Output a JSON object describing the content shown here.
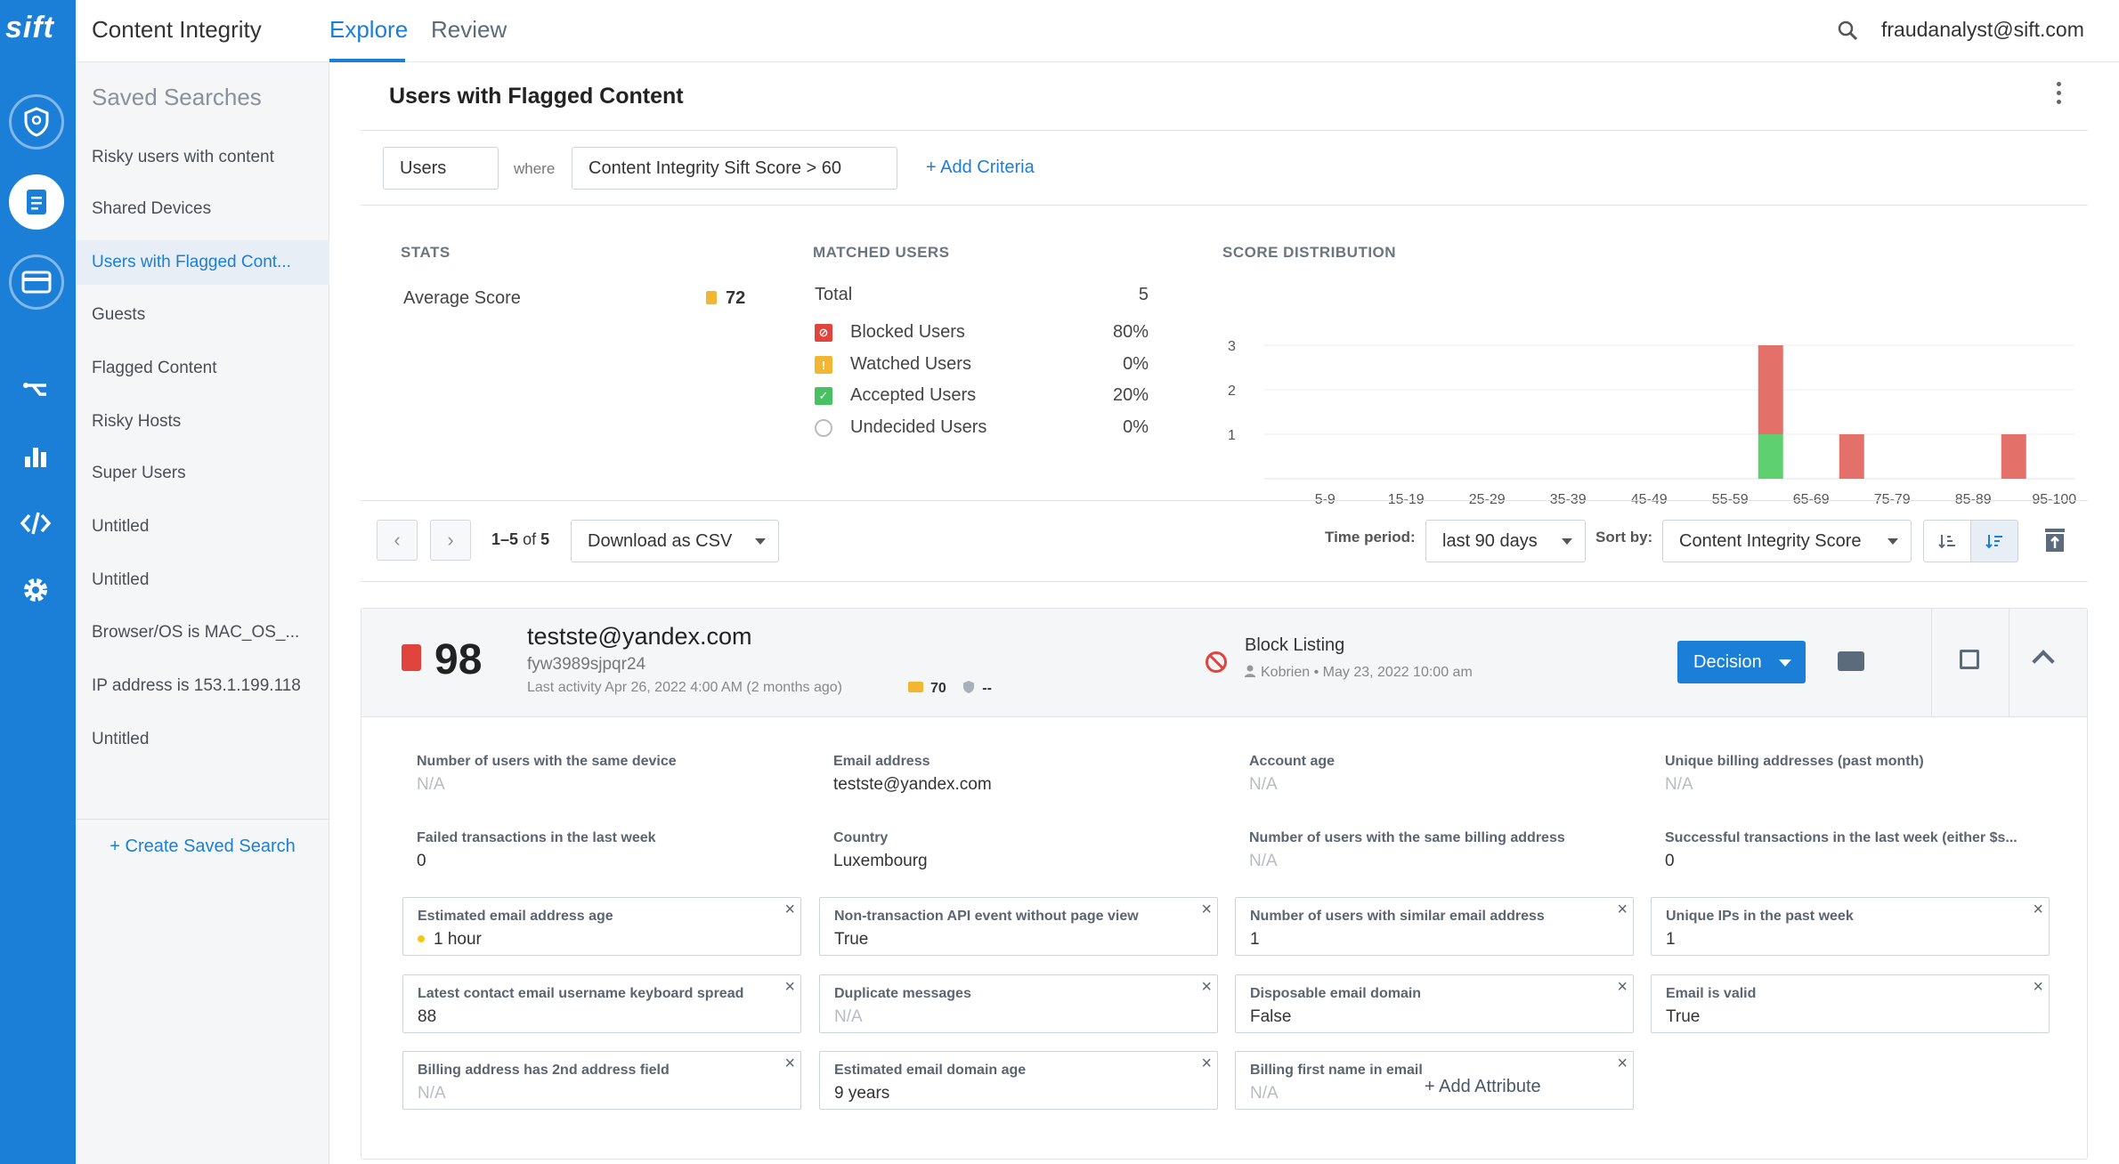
{
  "app": {
    "logo": "sift",
    "title": "Content Integrity"
  },
  "nav": {
    "tabs": [
      "Explore",
      "Review"
    ],
    "active": "Explore"
  },
  "user": {
    "email": "fraudanalyst@sift.com"
  },
  "sidebar": {
    "title": "Saved Searches",
    "items": [
      {
        "label": "Risky users with content"
      },
      {
        "label": "Shared Devices"
      },
      {
        "label": "Users with Flagged Cont..."
      },
      {
        "label": "Guests"
      },
      {
        "label": "Flagged Content"
      },
      {
        "label": "Risky Hosts"
      },
      {
        "label": "Super Users"
      },
      {
        "label": "Untitled"
      },
      {
        "label": "Untitled"
      },
      {
        "label": "Browser/OS is MAC_OS_..."
      },
      {
        "label": "IP address is 153.1.199.118"
      },
      {
        "label": "Untitled"
      }
    ],
    "active_index": 2,
    "create_label": "+ Create Saved Search"
  },
  "page": {
    "title": "Users with Flagged Content"
  },
  "criteria": {
    "entity": "Users",
    "where": "where",
    "condition": "Content Integrity Sift Score > 60",
    "add_label": "+ Add Criteria"
  },
  "stats": {
    "label": "STATS",
    "avg_name": "Average Score",
    "avg_value": "72"
  },
  "matched": {
    "label": "MATCHED USERS",
    "total_label": "Total",
    "total_value": "5",
    "rows": [
      {
        "label": "Blocked Users",
        "value": "80%",
        "color": "#e0443c",
        "icon": "blocked-icon"
      },
      {
        "label": "Watched Users",
        "value": "0%",
        "color": "#f2b632",
        "icon": "warning-icon"
      },
      {
        "label": "Accepted Users",
        "value": "20%",
        "color": "#49c163",
        "icon": "check-icon"
      },
      {
        "label": "Undecided Users",
        "value": "0%",
        "color": "#ffffff",
        "icon": "circle-icon"
      }
    ]
  },
  "chart_data": {
    "type": "bar",
    "title": "SCORE DISTRIBUTION",
    "categories": [
      "5-9",
      "15-19",
      "25-29",
      "35-39",
      "45-49",
      "55-59",
      "65-69",
      "75-79",
      "85-89",
      "95-100"
    ],
    "series": [
      {
        "name": "Accepted",
        "color": "#5fd06f",
        "values": [
          0,
          0,
          0,
          0,
          0,
          0,
          1,
          0,
          0,
          0
        ]
      },
      {
        "name": "Blocked",
        "color": "#e3716a",
        "values": [
          0,
          0,
          0,
          0,
          0,
          0,
          2,
          1,
          0,
          1
        ]
      }
    ],
    "yticks": [
      1,
      2,
      3
    ],
    "ylim": [
      0,
      3
    ],
    "stacked": true
  },
  "toolbar": {
    "pager_text": "1–5",
    "pager_of": "of",
    "pager_total": "5",
    "download_label": "Download as CSV",
    "time_label": "Time period:",
    "time_value": "last 90 days",
    "sort_label": "Sort by:",
    "sort_value": "Content Integrity Score"
  },
  "result": {
    "score": "98",
    "email": "testste@yandex.com",
    "user_id": "fyw3989sjpqr24",
    "activity": "Last activity Apr 26, 2022 4:00 AM (2 months ago)",
    "card_score": "70",
    "device_score": "--",
    "decision_title": "Block Listing",
    "decision_author": "Kobrien",
    "decision_date": "May 23, 2022 10:00 am",
    "decision_button": "Decision"
  },
  "attributes": [
    {
      "label": "Number of users with the same device",
      "value": "N/A",
      "na": true,
      "boxed": false
    },
    {
      "label": "Email address",
      "value": "testste@yandex.com",
      "na": false,
      "boxed": false
    },
    {
      "label": "Account age",
      "value": "N/A",
      "na": true,
      "boxed": false
    },
    {
      "label": "Unique billing addresses (past month)",
      "value": "N/A",
      "na": true,
      "boxed": false
    },
    {
      "label": "Failed transactions in the last week",
      "value": "0",
      "na": false,
      "boxed": false
    },
    {
      "label": "Country",
      "value": "Luxembourg",
      "na": false,
      "boxed": false
    },
    {
      "label": "Number of users with the same billing address",
      "value": "N/A",
      "na": true,
      "boxed": false
    },
    {
      "label": "Successful transactions in the last week (either $s...",
      "value": "0",
      "na": false,
      "boxed": false
    },
    {
      "label": "Estimated email address age",
      "value": "1 hour",
      "na": false,
      "boxed": true,
      "dot": true
    },
    {
      "label": "Non-transaction API event without page view",
      "value": "True",
      "na": false,
      "boxed": true
    },
    {
      "label": "Number of users with similar email address",
      "value": "1",
      "na": false,
      "boxed": true
    },
    {
      "label": "Unique IPs in the past week",
      "value": "1",
      "na": false,
      "boxed": true
    },
    {
      "label": "Latest contact email username keyboard spread",
      "value": "88",
      "na": false,
      "boxed": true
    },
    {
      "label": "Duplicate messages",
      "value": "N/A",
      "na": true,
      "boxed": true
    },
    {
      "label": "Disposable email domain",
      "value": "False",
      "na": false,
      "boxed": true
    },
    {
      "label": "Email is valid",
      "value": "True",
      "na": false,
      "boxed": true
    },
    {
      "label": "Billing address has 2nd address field",
      "value": "N/A",
      "na": true,
      "boxed": true
    },
    {
      "label": "Estimated email domain age",
      "value": "9 years",
      "na": false,
      "boxed": true
    },
    {
      "label": "Billing first name in email",
      "value": "N/A",
      "na": true,
      "boxed": true
    }
  ],
  "add_attribute_label": "+ Add Attribute",
  "close_glyph": "×"
}
